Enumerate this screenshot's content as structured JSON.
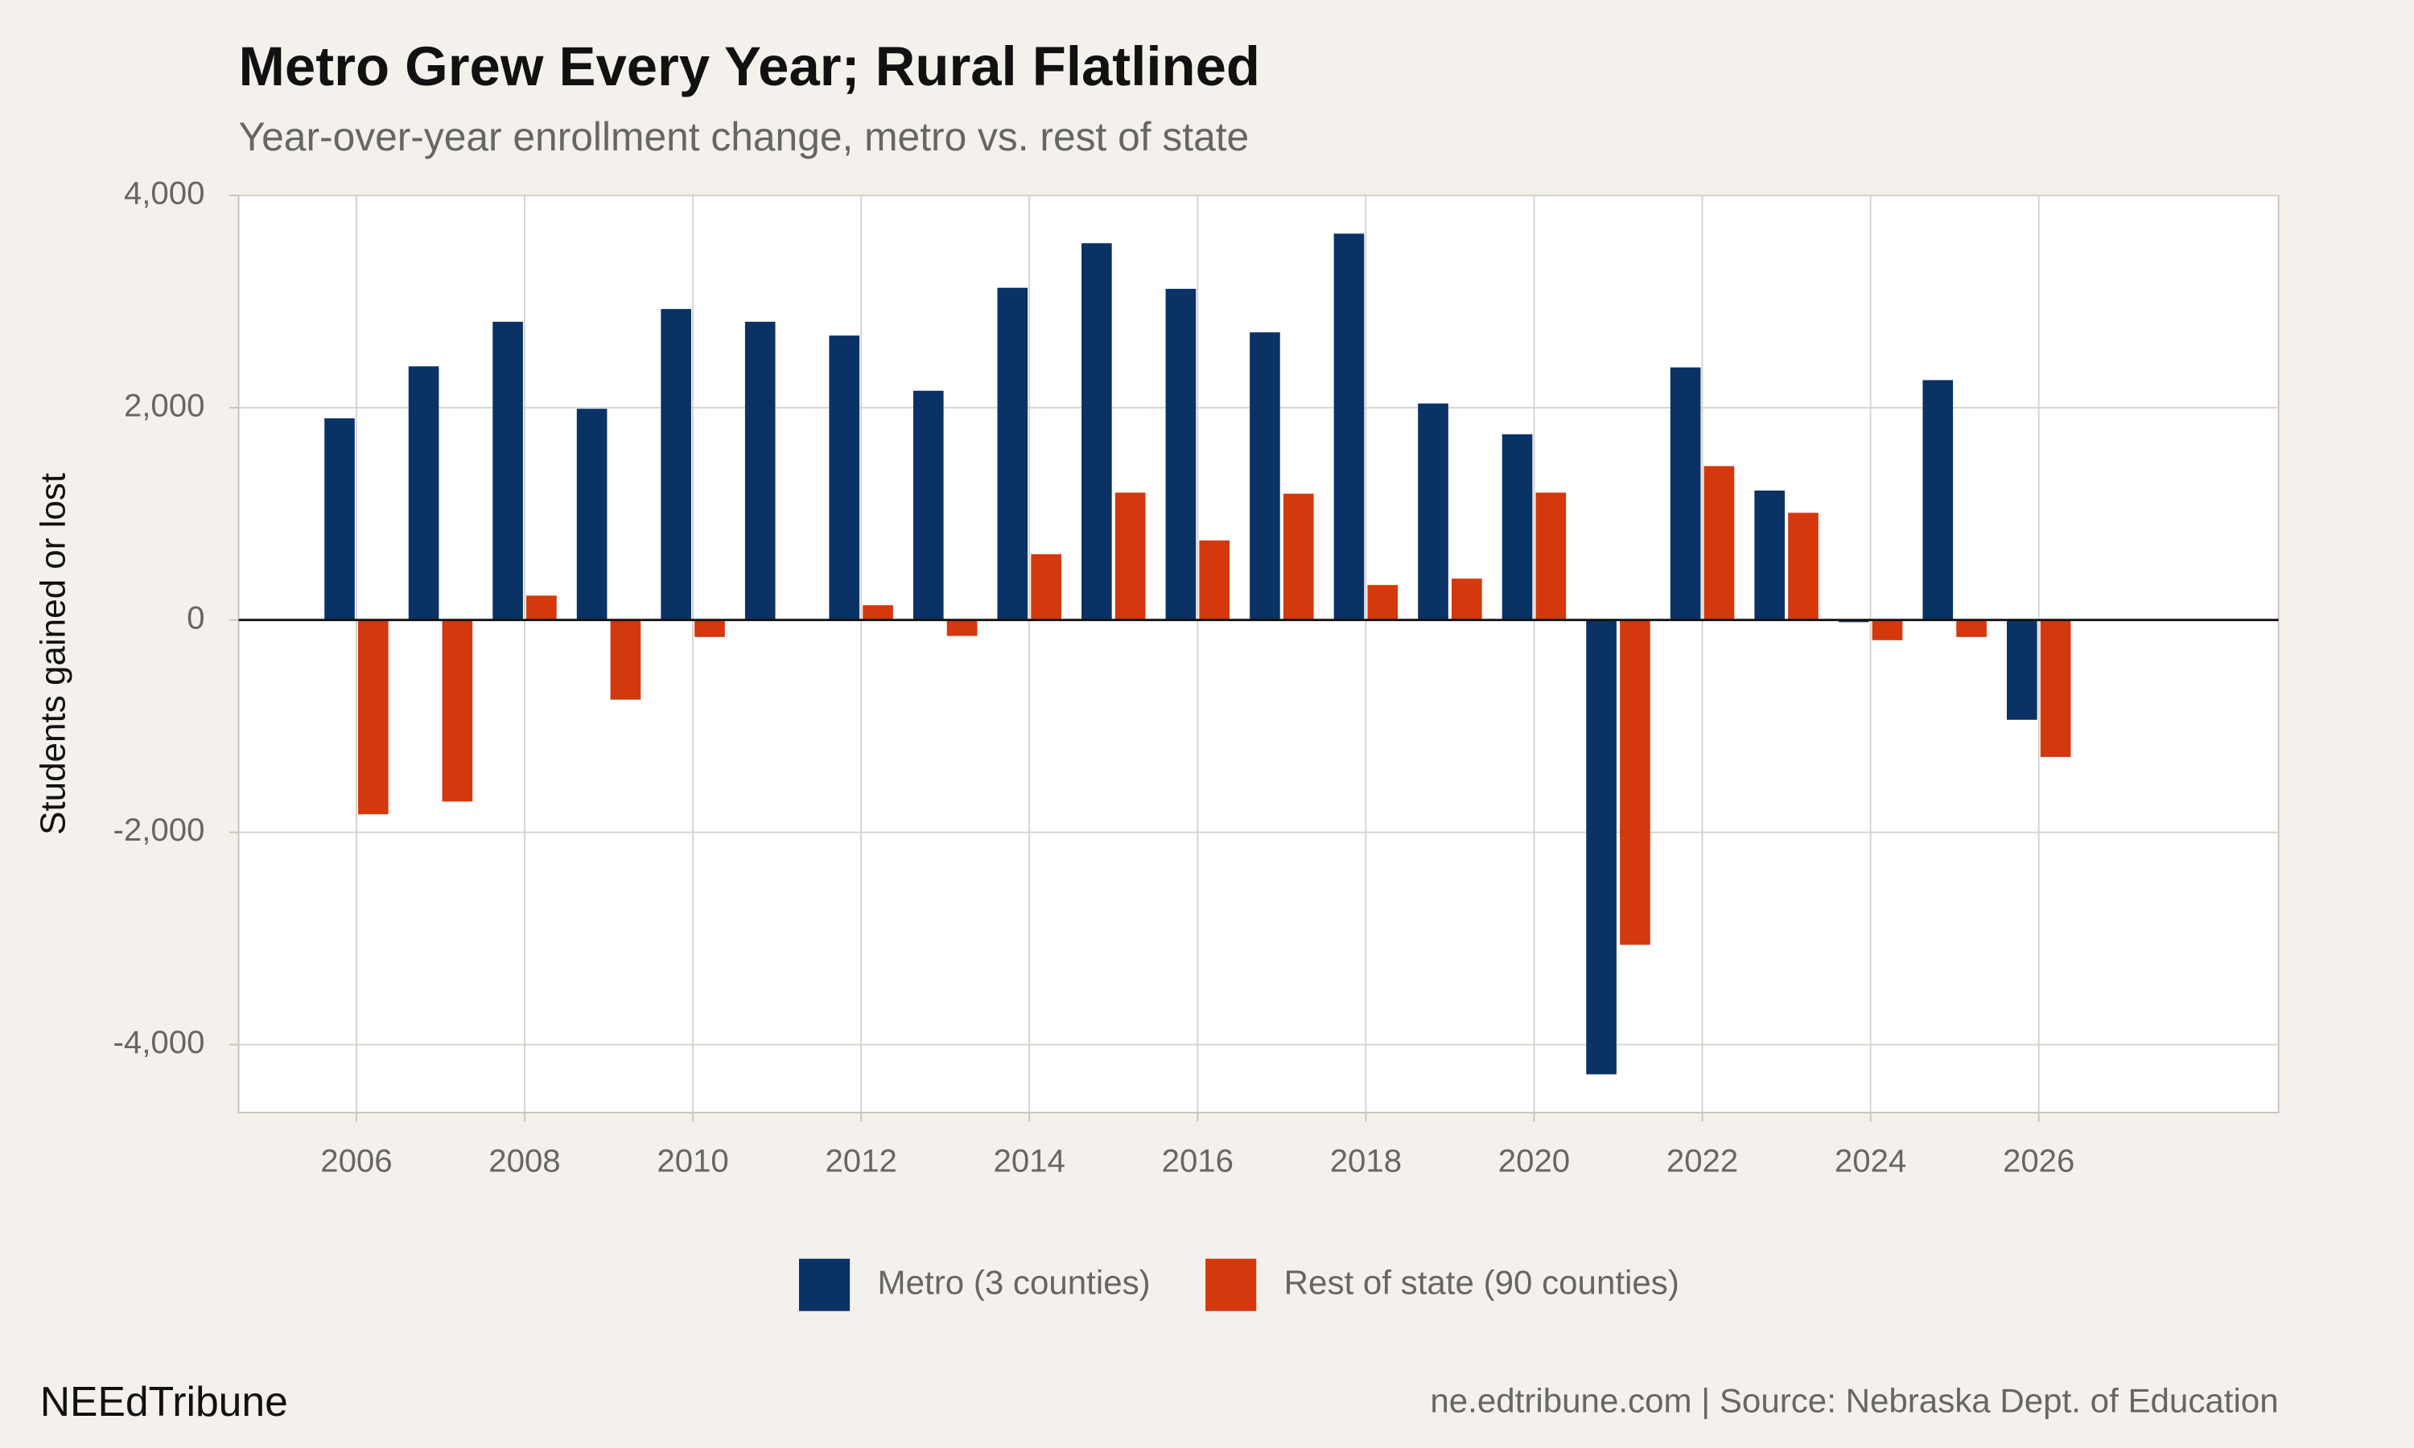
{
  "chart_data": {
    "type": "bar",
    "title": "Metro Grew Every Year; Rural Flatlined",
    "subtitle": "Year-over-year enrollment change, metro vs. rest of state",
    "y_label": "Students gained or lost",
    "x": [
      2006,
      2007,
      2008,
      2009,
      2010,
      2011,
      2012,
      2013,
      2014,
      2015,
      2016,
      2017,
      2018,
      2019,
      2020,
      2021,
      2022,
      2023,
      2024,
      2025,
      2026
    ],
    "series": [
      {
        "name": "Metro (3 counties)",
        "color": "#0b3264",
        "values": [
          1900,
          2390,
          2810,
          1990,
          2930,
          2810,
          2680,
          2160,
          3130,
          3550,
          3120,
          2710,
          3640,
          2040,
          1750,
          -4280,
          2380,
          1220,
          -20,
          2260,
          -940
        ]
      },
      {
        "name": "Rest of state (90 counties)",
        "color": "#d4380d",
        "values": [
          -1830,
          -1710,
          230,
          -750,
          -160,
          0,
          140,
          -150,
          620,
          1200,
          750,
          1190,
          330,
          390,
          1200,
          -3060,
          1450,
          1010,
          -190,
          -160,
          -1290
        ]
      }
    ],
    "xlim": [
      2004.6,
      2028.85
    ],
    "xticks": [
      2006,
      2008,
      2010,
      2012,
      2014,
      2016,
      2018,
      2020,
      2022,
      2024,
      2026
    ],
    "ylim": [
      -4640,
      4000
    ],
    "yticks": [
      {
        "value": -4000,
        "label": "-4,000"
      },
      {
        "value": -2000,
        "label": "-2,000"
      },
      0,
      {
        "value": 2000,
        "label": "2,000"
      },
      {
        "value": 4000,
        "label": "4,000"
      }
    ],
    "grid": true,
    "legend": "bottom",
    "brand": "NEEdTribune",
    "source": "ne.edtribune.com | Source: Nebraska Dept. of Education"
  }
}
